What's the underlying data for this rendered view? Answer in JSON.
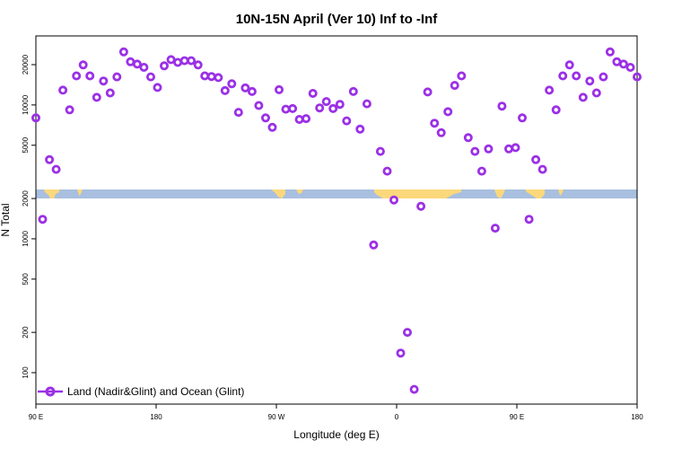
{
  "chart_data": {
    "type": "scatter",
    "title": "10N-15N April (Ver 10)   Inf to -Inf",
    "xlabel": "Longitude (deg E)",
    "ylabel": "N Total",
    "x_tick_labels": [
      "90 E",
      "180",
      "90 W",
      "0",
      "90 E",
      "180"
    ],
    "y_tick_values": [
      100,
      200,
      500,
      1000,
      2000,
      5000,
      10000,
      20000
    ],
    "y_tick_labels": [
      "100",
      "200",
      "500",
      "1000",
      "2000",
      "5000",
      "10000",
      "20000"
    ],
    "yscale": "log",
    "legend": {
      "position": "bottom-left",
      "entries": [
        {
          "label": "Land (Nadir&Glint) and Ocean (Glint)",
          "color": "#9b30e6"
        }
      ]
    },
    "marker_color": "#9b30e6",
    "strip_colors": {
      "ocean": "#a8bfdf",
      "land": "#fcd87c"
    },
    "series": [
      {
        "name": "Land (Nadir&Glint) and Ocean (Glint)",
        "values": [
          8000,
          1400,
          3900,
          3300,
          12900,
          9200,
          16500,
          19900,
          16500,
          11400,
          15100,
          12300,
          16200,
          24900,
          21000,
          20200,
          19100,
          16200,
          13500,
          19600,
          21800,
          20800,
          21400,
          21400,
          19900,
          16500,
          16300,
          16000,
          12800,
          14400,
          8800,
          13400,
          12600,
          9900,
          8000,
          6800,
          13000,
          9300,
          9400,
          7800,
          7900,
          12200,
          9500,
          10600,
          9400,
          10100,
          7600,
          12600,
          6600,
          10200,
          900,
          4500,
          3200,
          1950,
          140,
          200,
          75,
          1750,
          12500,
          7300,
          6200,
          8900,
          14000,
          16500,
          5700,
          4500,
          3200,
          4700,
          1200,
          9800,
          4700,
          4800,
          8000,
          1400,
          3900,
          3300,
          12900,
          9200,
          16500,
          19900,
          16500,
          11400,
          15100,
          12300,
          16200,
          24900,
          21000,
          20200,
          19100,
          16200
        ]
      }
    ]
  }
}
